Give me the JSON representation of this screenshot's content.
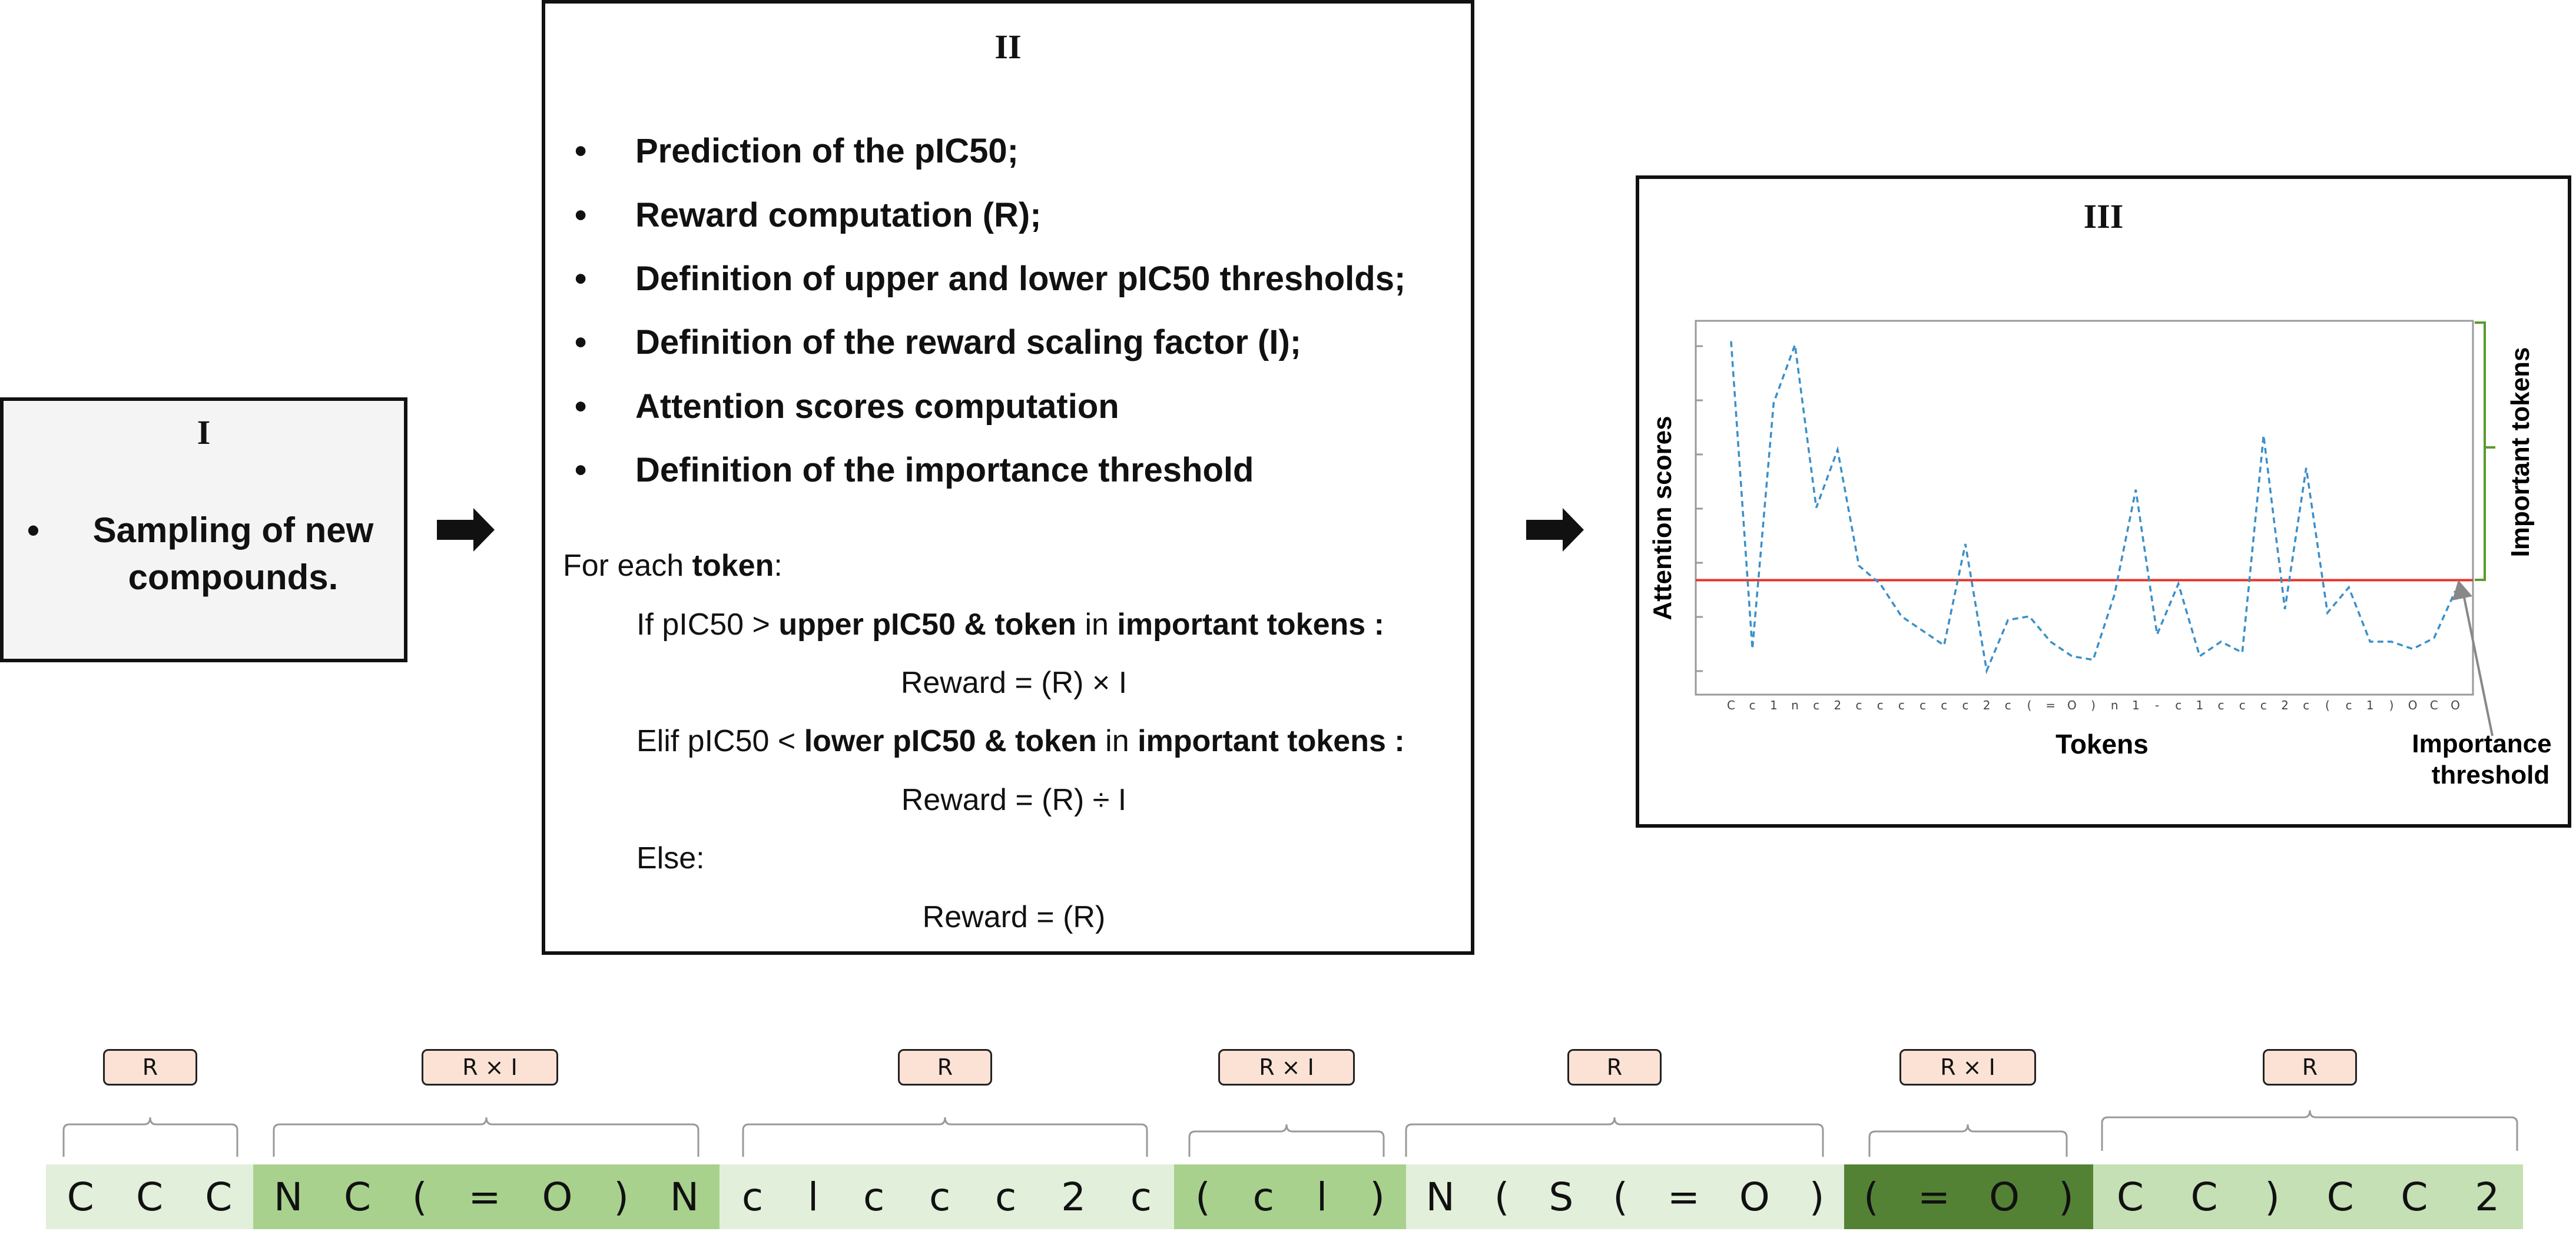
{
  "panel1": {
    "numeral": "I",
    "bullet": "•",
    "text": "Sampling of new compounds."
  },
  "panel2": {
    "numeral": "II",
    "bullet": "•",
    "items": [
      "Prediction of the pIC50;",
      "Reward computation (R);",
      "Definition of upper and lower pIC50 thresholds;",
      "Definition of the reward scaling factor (I);",
      "Attention scores computation",
      "Definition of the importance threshold"
    ],
    "for_each_prefix": "For each ",
    "for_each_token": "token",
    "for_each_suffix": ":",
    "if_prefix": "If pIC50 > ",
    "if_bold": "upper pIC50 & token",
    "in_word": " in ",
    "imp_tokens": "important tokens :",
    "reward_mul": "Reward = (R) × I",
    "elif_prefix": "Elif pIC50 < ",
    "elif_bold": "lower pIC50 & token",
    "reward_div": "Reward = (R) ÷ I",
    "else_text": "Else:",
    "reward_plain": "Reward = (R)"
  },
  "panel3": {
    "numeral": "III",
    "annot_importance_threshold_line1": "Importance",
    "annot_importance_threshold_line2": "threshold",
    "annot_important_tokens": "Important tokens"
  },
  "chart_data": {
    "type": "line",
    "xlabel": "Tokens",
    "ylabel": "Attention scores",
    "categories": [
      "C",
      "c",
      "1",
      "n",
      "c",
      "2",
      "c",
      "c",
      "c",
      "c",
      "c",
      "c",
      "2",
      "c",
      "(",
      "=",
      "O",
      ")",
      "n",
      "1",
      "-",
      "c",
      "1",
      "c",
      "c",
      "c",
      "2",
      "c",
      "(",
      "c",
      "1",
      ")",
      "O",
      "C",
      "O"
    ],
    "values": [
      0.96,
      0.11,
      0.79,
      0.95,
      0.5,
      0.66,
      0.34,
      0.29,
      0.2,
      0.16,
      0.12,
      0.4,
      0.05,
      0.19,
      0.2,
      0.13,
      0.09,
      0.08,
      0.26,
      0.55,
      0.15,
      0.29,
      0.09,
      0.13,
      0.1,
      0.7,
      0.22,
      0.61,
      0.21,
      0.28,
      0.13,
      0.13,
      0.11,
      0.14,
      0.27
    ],
    "importance_threshold": 0.3,
    "ylim": [
      0,
      1
    ],
    "line_color": "#3a8fc9",
    "threshold_color": "#e8332a",
    "bracket_color": "#5a9a2d"
  },
  "reward_labels": [
    "R",
    "R × I",
    "R",
    "R × I",
    "R",
    "R × I",
    "R"
  ],
  "sequence_segments": [
    {
      "tokens": [
        "C",
        "C",
        "C"
      ],
      "color": "#e2efda"
    },
    {
      "tokens": [
        "N",
        "C",
        "(",
        "=",
        "O",
        ")",
        "N"
      ],
      "color": "#a9d18e"
    },
    {
      "tokens": [
        "c",
        "l",
        "c",
        "c",
        "c",
        "2",
        "c"
      ],
      "color": "#e2efda"
    },
    {
      "tokens": [
        "(",
        "c",
        "l",
        ")"
      ],
      "color": "#a9d18e"
    },
    {
      "tokens": [
        "N",
        "(",
        "S",
        "(",
        "=",
        "O",
        ")"
      ],
      "color": "#e2efda"
    },
    {
      "tokens": [
        "(",
        "=",
        "O",
        ")"
      ],
      "color": "#548235"
    },
    {
      "tokens": [
        "C",
        "C",
        ")",
        "C",
        "C",
        "2"
      ],
      "color": "#c5e0b4"
    }
  ]
}
